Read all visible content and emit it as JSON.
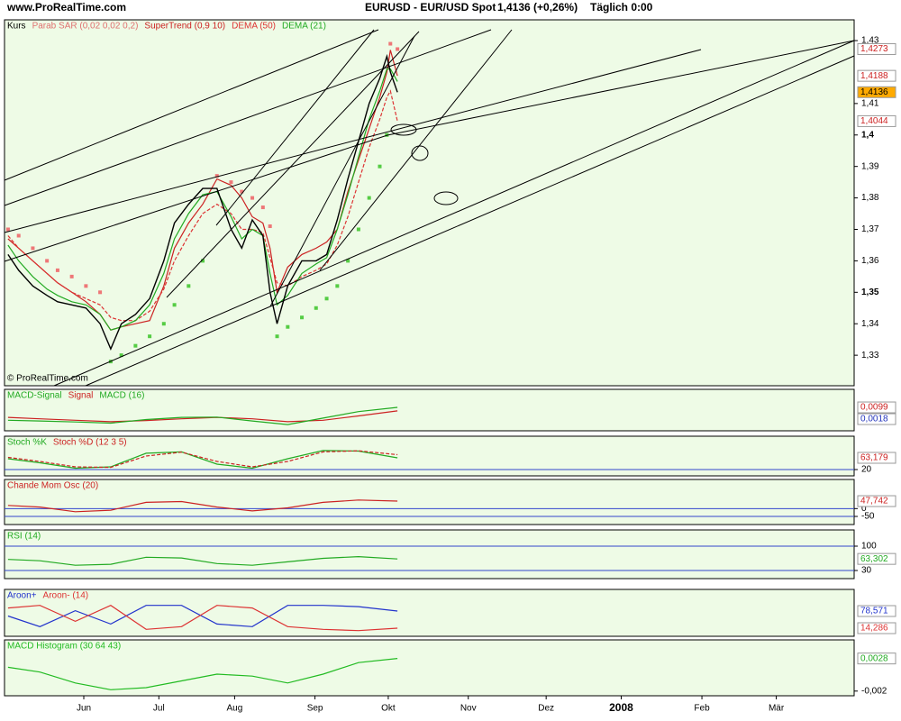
{
  "header": {
    "site": "www.ProRealTime.com",
    "instrument": "EURUSD - EUR/USD Spot",
    "quote": "1,4136 (+0,26%)",
    "period": "Täglich 0:00",
    "copyright": "© ProRealTime.com"
  },
  "chart_data": [
    {
      "type": "line",
      "title": "Kurs",
      "x": [
        1,
        4,
        8,
        12,
        15,
        19,
        23,
        27,
        30,
        33,
        37,
        41,
        45,
        48,
        52,
        56,
        60,
        64,
        67,
        70,
        73,
        75,
        77,
        80,
        84,
        88,
        91,
        94,
        97,
        100,
        103,
        106,
        108,
        109,
        111
      ],
      "xlim": [
        0,
        240
      ],
      "ylim": [
        1.3203,
        1.4366
      ],
      "grid": false,
      "yticks": [
        {
          "value": 1.33,
          "label": "1,33"
        },
        {
          "value": 1.34,
          "label": "1,34"
        },
        {
          "value": 1.35,
          "label": "1,35",
          "bold": true
        },
        {
          "value": 1.36,
          "label": "1,36"
        },
        {
          "value": 1.37,
          "label": "1,37"
        },
        {
          "value": 1.38,
          "label": "1,38"
        },
        {
          "value": 1.39,
          "label": "1,39"
        },
        {
          "value": 1.4,
          "label": "1,4",
          "bold": true
        },
        {
          "value": 1.41,
          "label": "1,41"
        },
        {
          "value": 1.43,
          "label": "1,43"
        }
      ],
      "series": [
        {
          "name": "Parab SAR (0,02 0,02 0,2)",
          "color": "#e07070",
          "colors": [
            "#ee7777",
            "#55cc44"
          ],
          "style": "dots",
          "values": [
            1.37,
            1.368,
            1.364,
            1.36,
            1.357,
            1.355,
            1.352,
            1.35,
            1.328,
            1.33,
            1.333,
            1.336,
            1.34,
            1.346,
            1.352,
            1.36,
            1.387,
            1.385,
            1.382,
            1.38,
            1.377,
            1.371,
            1.336,
            1.339,
            1.342,
            1.345,
            1.348,
            1.352,
            1.36,
            1.37,
            1.38,
            1.39,
            1.4,
            1.429,
            1.4273
          ]
        },
        {
          "name": "SuperTrend (0,9 10)",
          "color": "#cc2222",
          "values": [
            1.367,
            1.364,
            1.36,
            1.356,
            1.353,
            1.35,
            1.347,
            1.343,
            1.338,
            1.339,
            1.34,
            1.341,
            1.352,
            1.364,
            1.372,
            1.378,
            1.386,
            1.384,
            1.38,
            1.374,
            1.372,
            1.364,
            1.35,
            1.358,
            1.362,
            1.364,
            1.366,
            1.37,
            1.382,
            1.392,
            1.402,
            1.412,
            1.42,
            1.427,
            1.4188
          ]
        },
        {
          "name": "DEMA (50)",
          "color": "#dd3333",
          "style": "dashed",
          "values": [
            1.368,
            1.364,
            1.36,
            1.356,
            1.353,
            1.35,
            1.348,
            1.346,
            1.342,
            1.341,
            1.341,
            1.344,
            1.351,
            1.36,
            1.368,
            1.375,
            1.378,
            1.375,
            1.37,
            1.37,
            1.369,
            1.361,
            1.353,
            1.352,
            1.355,
            1.357,
            1.359,
            1.365,
            1.374,
            1.385,
            1.396,
            1.405,
            1.412,
            1.414,
            1.4044
          ]
        },
        {
          "name": "DEMA (21)",
          "color": "#22aa22",
          "values": [
            1.365,
            1.36,
            1.355,
            1.351,
            1.349,
            1.347,
            1.346,
            1.343,
            1.338,
            1.339,
            1.341,
            1.346,
            1.356,
            1.367,
            1.375,
            1.381,
            1.382,
            1.374,
            1.367,
            1.37,
            1.368,
            1.356,
            1.346,
            1.349,
            1.356,
            1.359,
            1.361,
            1.37,
            1.381,
            1.393,
            1.405,
            1.414,
            1.421,
            1.421,
            1.417
          ]
        },
        {
          "name": "",
          "legend": false,
          "color": "#000000",
          "values": [
            1.362,
            1.357,
            1.352,
            1.349,
            1.347,
            1.346,
            1.345,
            1.34,
            1.332,
            1.34,
            1.343,
            1.348,
            1.36,
            1.372,
            1.378,
            1.383,
            1.383,
            1.37,
            1.364,
            1.373,
            1.368,
            1.35,
            1.34,
            1.352,
            1.36,
            1.36,
            1.362,
            1.373,
            1.386,
            1.398,
            1.41,
            1.418,
            1.425,
            1.42,
            1.4136
          ]
        }
      ],
      "markers": [
        {
          "value": 1.4273,
          "label": "1,4273",
          "color": "#cc2222"
        },
        {
          "value": 1.4188,
          "label": "1,4188",
          "color": "#cc2222"
        },
        {
          "value": 1.4136,
          "label": "1,4136",
          "color": "#000000",
          "bg": "#ffaa00"
        },
        {
          "value": 1.4044,
          "label": "1,4044",
          "color": "#cc2222"
        }
      ]
    },
    {
      "type": "line",
      "title": "MACD-Signal",
      "title_color": "#22aa22",
      "x": [
        1,
        10,
        20,
        30,
        40,
        50,
        60,
        70,
        80,
        90,
        100,
        111
      ],
      "xlim": [
        0,
        240
      ],
      "ylim": [
        -0.0063,
        0.0224
      ],
      "series": [
        {
          "name": "Signal",
          "color": "#cc2222",
          "values": [
            0.003,
            0.002,
            0.001,
            0.0,
            0.0008,
            0.002,
            0.003,
            0.002,
            0.0,
            0.001,
            0.004,
            0.0075
          ]
        },
        {
          "name": "MACD (16)",
          "color": "#22aa22",
          "values": [
            0.001,
            0.0005,
            -0.0002,
            -0.001,
            0.0015,
            0.003,
            0.0032,
            0.0005,
            -0.002,
            0.0025,
            0.007,
            0.0099
          ]
        }
      ],
      "markers": [
        {
          "value": 0.0099,
          "label": "0,0099",
          "color": "#cc2222"
        },
        {
          "value": 0.0018,
          "label": "0,0018",
          "color": "#2233bb"
        }
      ]
    },
    {
      "type": "line",
      "x": [
        1,
        10,
        20,
        30,
        40,
        50,
        60,
        70,
        80,
        90,
        100,
        111
      ],
      "xlim": [
        0,
        240
      ],
      "ylim": [
        -3.3,
        143
      ],
      "grid": true,
      "grid_color": "#3344cc",
      "yticks": [
        20
      ],
      "series": [
        {
          "name": "Stoch %K",
          "color": "#22aa22",
          "values": [
            60,
            45,
            25,
            30,
            80,
            85,
            40,
            25,
            60,
            90,
            88,
            63.179
          ]
        },
        {
          "name": "Stoch %D (12 3 5)",
          "color": "#cc2222",
          "style": "dashed",
          "values": [
            65,
            50,
            30,
            28,
            70,
            84,
            50,
            30,
            50,
            85,
            89,
            75
          ]
        }
      ],
      "markers": [
        {
          "value": 63.179,
          "label": "63,179",
          "color": "#cc2222"
        }
      ]
    },
    {
      "type": "line",
      "x": [
        1,
        10,
        20,
        30,
        40,
        50,
        60,
        70,
        80,
        90,
        100,
        111
      ],
      "xlim": [
        0,
        240
      ],
      "ylim": [
        -101.7,
        186
      ],
      "grid": true,
      "grid_color": "#3344cc",
      "yticks": [
        -50,
        0
      ],
      "series": [
        {
          "name": "Chande Mom Osc (20)",
          "color": "#cc2222",
          "values": [
            20,
            10,
            -20,
            -10,
            40,
            45,
            10,
            -15,
            5,
            40,
            55,
            47.742
          ]
        }
      ],
      "markers": [
        {
          "value": 47.742,
          "label": "47,742",
          "color": "#cc2222"
        }
      ]
    },
    {
      "type": "line",
      "x": [
        1,
        10,
        20,
        30,
        40,
        50,
        60,
        70,
        80,
        90,
        100,
        111
      ],
      "xlim": [
        0,
        240
      ],
      "ylim": [
        6.7,
        146.6
      ],
      "grid": true,
      "grid_color": "#3344cc",
      "yticks": [
        30,
        100
      ],
      "series": [
        {
          "name": "RSI (14)",
          "color": "#22aa22",
          "values": [
            62,
            58,
            45,
            48,
            68,
            66,
            50,
            45,
            55,
            65,
            70,
            63.302
          ]
        }
      ],
      "markers": [
        {
          "value": 63.302,
          "label": "63,302",
          "color": "#22aa22"
        }
      ]
    },
    {
      "type": "line",
      "x": [
        1,
        10,
        20,
        30,
        40,
        50,
        60,
        70,
        80,
        90,
        100,
        111
      ],
      "xlim": [
        0,
        240
      ],
      "ylim": [
        -16.2,
        159.8
      ],
      "series": [
        {
          "name": "Aroon+",
          "color": "#2233cc",
          "values": [
            60,
            20,
            80,
            30,
            100,
            100,
            30,
            20,
            100,
            100,
            95,
            78.571
          ]
        },
        {
          "name": "Aroon- (14)",
          "color": "#dd3333",
          "values": [
            90,
            100,
            40,
            100,
            10,
            20,
            100,
            90,
            20,
            10,
            5,
            14.286
          ]
        }
      ],
      "markers": [
        {
          "value": 78.571,
          "label": "78,571",
          "color": "#2233cc"
        },
        {
          "value": 14.286,
          "label": "14,286",
          "color": "#dd3333"
        }
      ]
    },
    {
      "type": "line",
      "x": [
        1,
        10,
        20,
        30,
        40,
        50,
        60,
        70,
        80,
        90,
        100,
        111
      ],
      "xlim": [
        0,
        240
      ],
      "ylim": [
        -0.00269,
        0.00554
      ],
      "yticks": [
        {
          "value": -0.002,
          "label": "-0,002"
        }
      ],
      "xticks": [
        {
          "value": 22.4,
          "label": "Jun"
        },
        {
          "value": 43.6,
          "label": "Jul"
        },
        {
          "value": 65,
          "label": "Aug"
        },
        {
          "value": 87.7,
          "label": "Sep"
        },
        {
          "value": 108.4,
          "label": "Okt"
        },
        {
          "value": 131,
          "label": "Nov"
        },
        {
          "value": 153,
          "label": "Dez"
        },
        {
          "value": 174.2,
          "label": "2008",
          "bold": true
        },
        {
          "value": 197,
          "label": "Feb"
        },
        {
          "value": 218,
          "label": "Mär"
        }
      ],
      "series": [
        {
          "name": "MACD Histogram (30 64 43)",
          "color": "#22bb22",
          "values": [
            0.0015,
            0.0008,
            -0.0008,
            -0.0018,
            -0.0015,
            -0.0005,
            0.0005,
            0.0002,
            -0.0008,
            0.0005,
            0.0022,
            0.0028
          ]
        }
      ],
      "markers": [
        {
          "value": 0.0028,
          "label": "0,0028",
          "color": "#22aa22"
        }
      ]
    }
  ]
}
